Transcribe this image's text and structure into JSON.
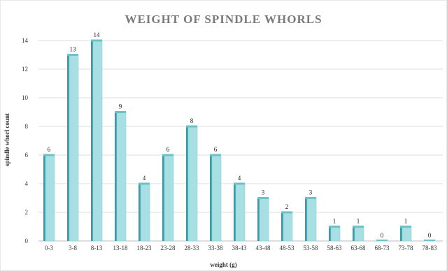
{
  "chart_data": {
    "type": "bar",
    "title": "WEIGHT OF SPINDLE WHORLS",
    "xlabel": "weight (g)",
    "ylabel": "spindle whorl count",
    "categories": [
      "0-3",
      "3-8",
      "8-13",
      "13-18",
      "18-23",
      "23-28",
      "28-33",
      "33-38",
      "38-43",
      "43-48",
      "48-53",
      "53-58",
      "58-63",
      "63-68",
      "68-73",
      "73-78",
      "78-83"
    ],
    "values": [
      6,
      13,
      14,
      9,
      4,
      6,
      8,
      6,
      4,
      3,
      2,
      3,
      1,
      1,
      0,
      1,
      0
    ],
    "ylim": [
      0,
      14
    ],
    "yticks": [
      0,
      2,
      4,
      6,
      8,
      10,
      12,
      14
    ],
    "grid": true,
    "colors": {
      "bar_face": "#a8dfe3",
      "bar_side": "#3f9aa3",
      "bar_top": "#6cc2c9"
    }
  }
}
